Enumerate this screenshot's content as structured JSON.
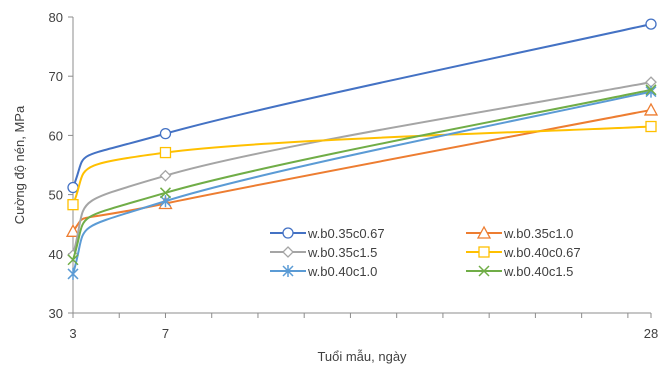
{
  "chart_data": {
    "type": "line",
    "xlabel": "Tuổi mẫu, ngày",
    "ylabel": "Cường độ nén, MPa",
    "xlim": [
      3,
      28
    ],
    "ylim": [
      30,
      80
    ],
    "x_ticks": [
      3,
      7,
      28
    ],
    "y_ticks": [
      30,
      40,
      50,
      60,
      70,
      80
    ],
    "x": [
      3,
      7,
      28
    ],
    "grid": false,
    "legend_position": "center-right",
    "series": [
      {
        "name": "w.b0.35c0.67",
        "color": "#4472C4",
        "marker": "circle",
        "values": [
          51.2,
          60.3,
          78.8
        ]
      },
      {
        "name": "w.b0.35c1.0",
        "color": "#ED7D31",
        "marker": "triangle",
        "values": [
          43.8,
          48.5,
          64.3
        ]
      },
      {
        "name": "w.b0.35c1.5",
        "color": "#A5A5A5",
        "marker": "diamond",
        "values": [
          39.8,
          53.2,
          69.0
        ]
      },
      {
        "name": "w.b0.40c0.67",
        "color": "#FFC000",
        "marker": "square",
        "values": [
          48.3,
          57.1,
          61.5
        ]
      },
      {
        "name": "w.b0.40c1.0",
        "color": "#5B9BD5",
        "marker": "asterisk",
        "values": [
          36.6,
          48.9,
          67.4
        ]
      },
      {
        "name": "w.b0.40c1.5",
        "color": "#70AD47",
        "marker": "x",
        "values": [
          39.0,
          50.3,
          67.7
        ]
      }
    ]
  }
}
